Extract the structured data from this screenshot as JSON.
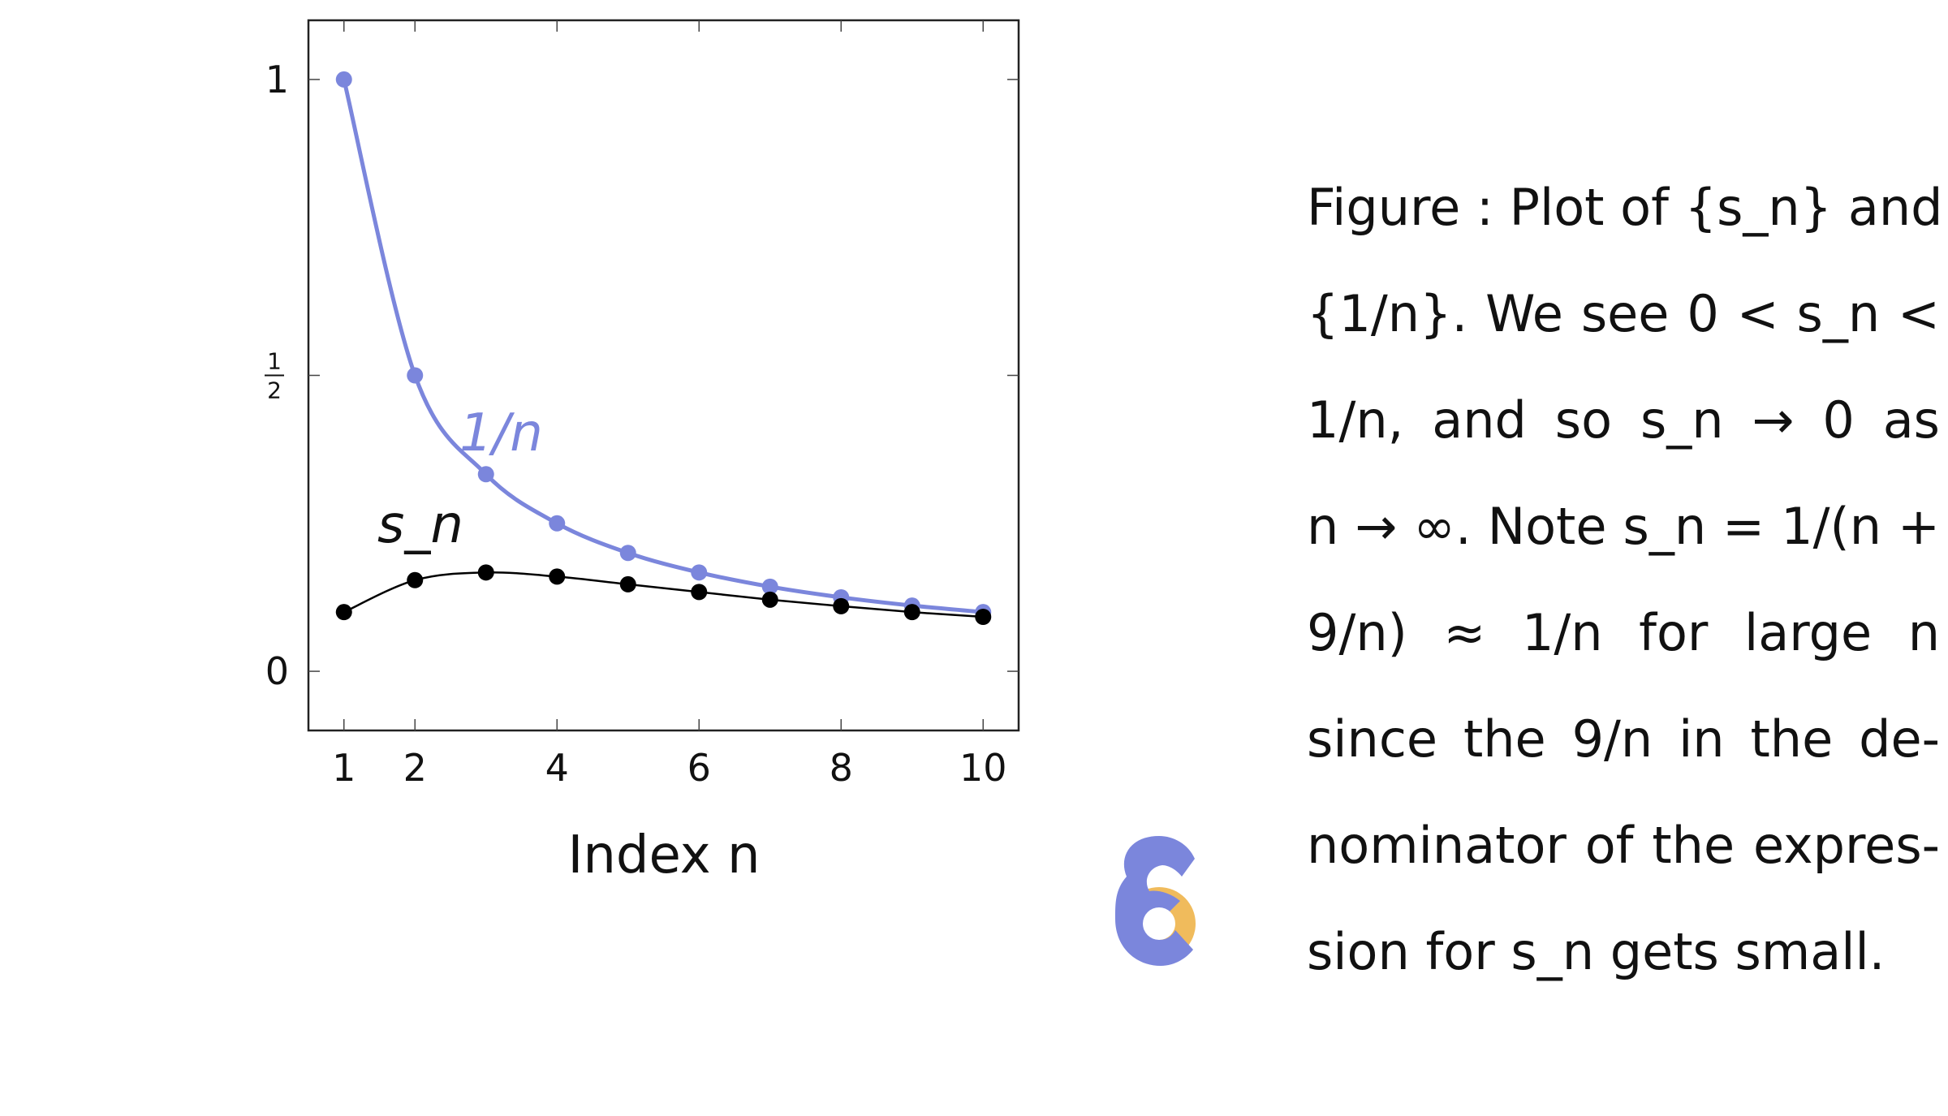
{
  "chart_data": {
    "type": "line",
    "xlabel": "Index n",
    "xlim": [
      0.5,
      10.5
    ],
    "ylim": [
      -0.1,
      1.1
    ],
    "x_ticks": [
      1,
      2,
      4,
      6,
      8,
      10
    ],
    "y_ticks": [
      {
        "value": 0,
        "label": "0"
      },
      {
        "value": 0.5,
        "label": "1/2"
      },
      {
        "value": 1,
        "label": "1"
      }
    ],
    "grid": false,
    "markers": true,
    "smooth": true,
    "series": [
      {
        "name": "1/n",
        "color": "#7b86dc",
        "x": [
          1,
          2,
          3,
          4,
          5,
          6,
          7,
          8,
          9,
          10
        ],
        "values": [
          1.0,
          0.5,
          0.333,
          0.25,
          0.2,
          0.167,
          0.143,
          0.125,
          0.111,
          0.1
        ]
      },
      {
        "name": "s_n",
        "color": "#000000",
        "x": [
          1,
          2,
          3,
          4,
          5,
          6,
          7,
          8,
          9,
          10
        ],
        "values": [
          0.1,
          0.154,
          0.167,
          0.16,
          0.147,
          0.134,
          0.121,
          0.11,
          0.1,
          0.092
        ]
      }
    ]
  },
  "caption": {
    "lines": [
      "Figure : Plot of {s_n} and",
      "{1/n}. We see 0 < s_n <",
      "1/n, and so s_n → 0 as",
      "n → ∞. Note s_n = 1/(n +",
      "9/n) ≈ 1/n for large n",
      "since the 9/n in the de-",
      "nominator of the expres-",
      "sion for s_n gets small."
    ]
  },
  "logo": {
    "icon": "logo-icon",
    "primary_color": "#7b86dc",
    "accent_color": "#f0bb5c"
  }
}
